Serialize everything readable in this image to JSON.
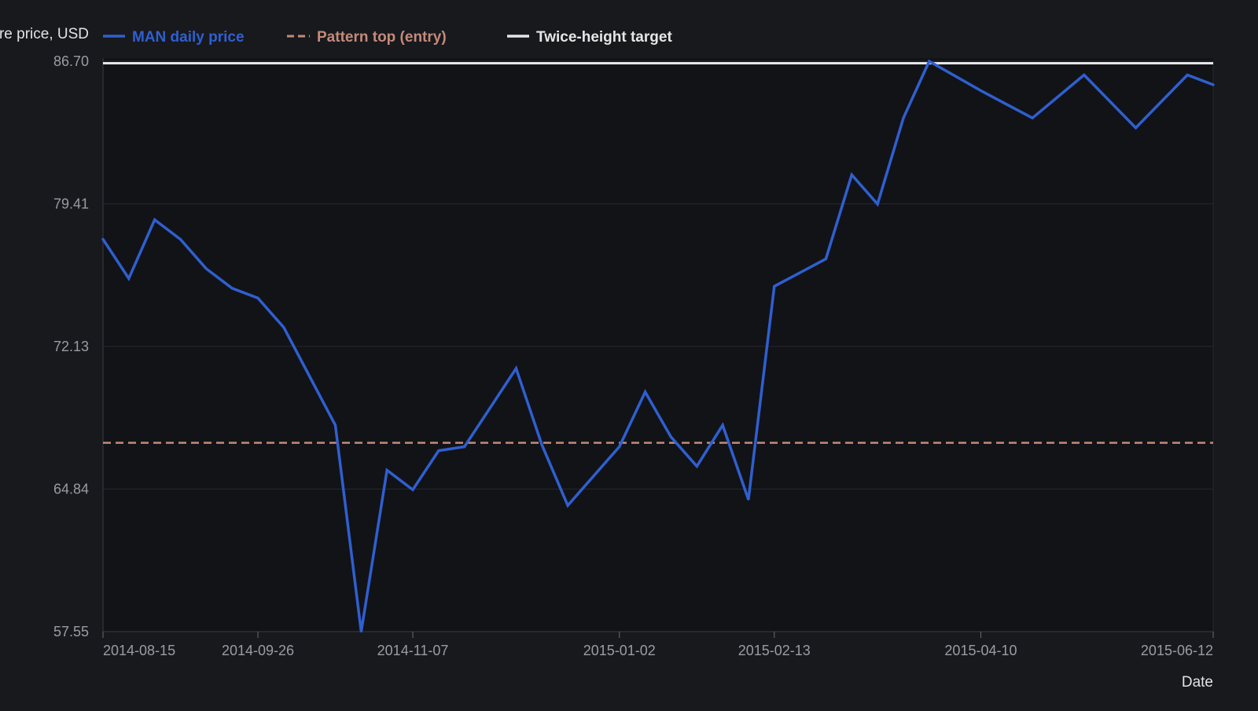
{
  "chart_data": {
    "type": "line",
    "ylabel": "Closing share price, USD",
    "xlabel": "Date",
    "ylim": [
      57.55,
      86.7
    ],
    "yticks": [
      57.55,
      64.84,
      72.13,
      79.41,
      86.7
    ],
    "ytick_labels": [
      "57.55",
      "64.84",
      "72.13",
      "79.41",
      "86.70"
    ],
    "xlim": [
      "2014-08-15",
      "2015-06-12"
    ],
    "xticks": [
      "2014-08-15",
      "2014-09-26",
      "2014-11-07",
      "2015-01-02",
      "2015-02-13",
      "2015-04-10",
      "2015-06-12"
    ],
    "grid": true,
    "legend_position": "top",
    "series": [
      {
        "name": "MAN daily price",
        "style": "solid",
        "color": "#2f5fd0",
        "x": [
          "2014-08-15",
          "2014-08-22",
          "2014-08-29",
          "2014-09-05",
          "2014-09-12",
          "2014-09-19",
          "2014-09-26",
          "2014-10-03",
          "2014-10-10",
          "2014-10-17",
          "2014-10-24",
          "2014-10-31",
          "2014-11-07",
          "2014-11-14",
          "2014-11-21",
          "2014-11-28",
          "2014-12-05",
          "2014-12-12",
          "2014-12-19",
          "2014-12-26",
          "2015-01-02",
          "2015-01-09",
          "2015-01-16",
          "2015-01-23",
          "2015-01-30",
          "2015-02-06",
          "2015-02-13",
          "2015-02-20",
          "2015-02-27",
          "2015-03-06",
          "2015-03-13",
          "2015-03-20",
          "2015-03-27",
          "2015-04-10",
          "2015-04-24",
          "2015-05-08",
          "2015-05-22",
          "2015-06-05",
          "2015-06-12"
        ],
        "y": [
          77.6,
          75.6,
          78.6,
          77.6,
          76.1,
          75.1,
          74.6,
          73.1,
          70.6,
          68.1,
          57.55,
          65.8,
          64.8,
          66.8,
          67.0,
          69.0,
          71.0,
          67.1,
          64.0,
          65.5,
          67.0,
          69.8,
          67.5,
          66.0,
          68.1,
          64.3,
          75.2,
          75.9,
          76.6,
          80.9,
          79.4,
          83.8,
          86.7,
          85.2,
          83.8,
          86.0,
          83.3,
          86.0,
          85.5
        ]
      },
      {
        "name": "Pattern top (entry)",
        "style": "dashed",
        "color": "#c48a7a",
        "y": 67.2
      },
      {
        "name": "Twice-height target",
        "style": "solid",
        "color": "#e6e6e6",
        "y": 86.6
      }
    ]
  },
  "colors": {
    "background": "#18191d",
    "plot_background": "#121317",
    "grid": "#26282e",
    "axis_text": "#9a9ca3",
    "axis_label": "#e2e2e2"
  }
}
